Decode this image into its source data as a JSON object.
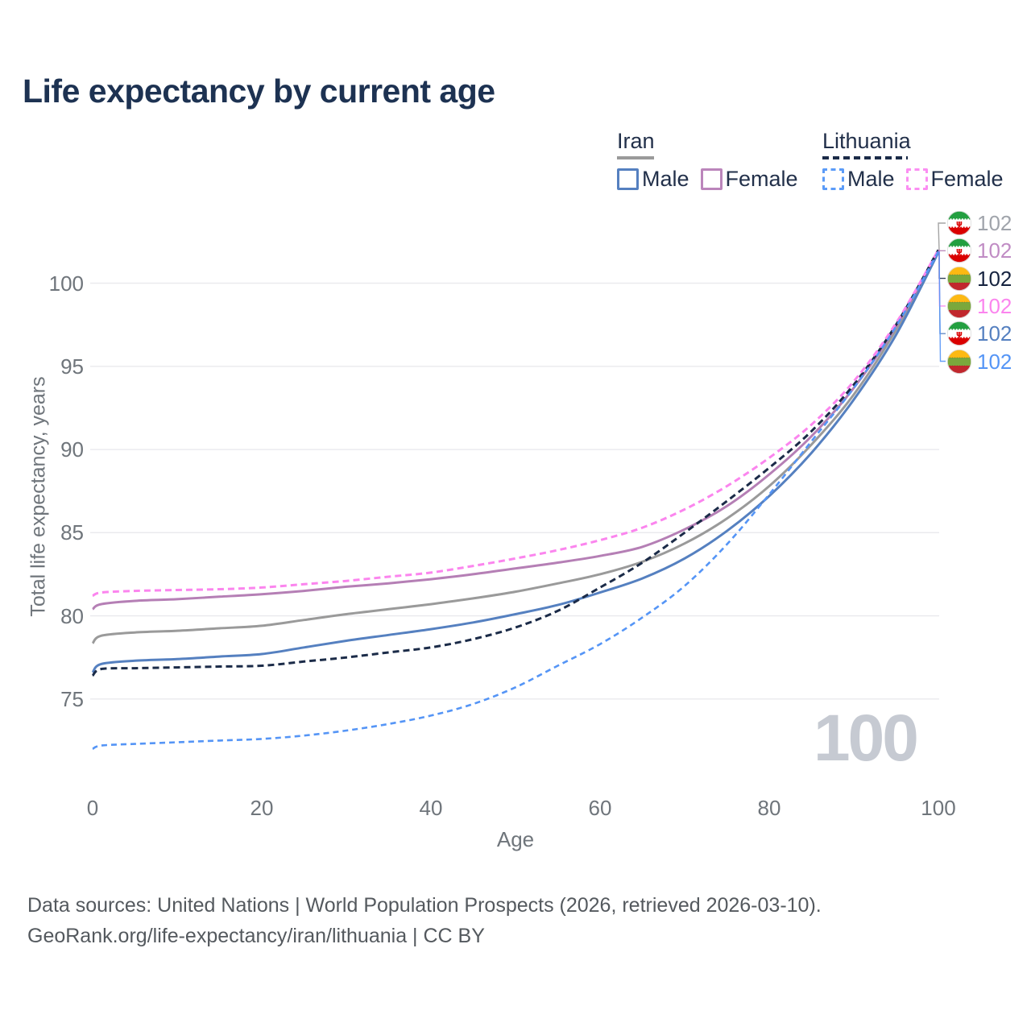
{
  "title": "Life expectancy by current age",
  "legend": {
    "iran": {
      "label": "Iran",
      "male": "Male",
      "female": "Female"
    },
    "lithuania": {
      "label": "Lithuania",
      "male": "Male",
      "female": "Female"
    }
  },
  "colors": {
    "iran_male": "#5580c0",
    "iran_female": "#b57fb5",
    "iran_total": "#9a9a9a",
    "lithuania_male": "#5595f6",
    "lithuania_female": "#fb85ee",
    "lithuania_total": "#1b2b48",
    "title_text": "#1d3252",
    "axis_text": "#6f757b",
    "gridline": "#e9e9ed",
    "watermark": "#c6cad2"
  },
  "watermark": "100",
  "footer": {
    "line1": "Data sources: United Nations | World Population Prospects (2026, retrieved 2026-03-10).",
    "line2": "GeoRank.org/life-expectancy/iran/lithuania | CC BY"
  },
  "chart_data": {
    "type": "line",
    "title": "Life expectancy by current age",
    "xlabel": "Age",
    "ylabel": "Total life expectancy, years",
    "xticks": [
      0,
      20,
      40,
      60,
      80,
      100
    ],
    "yticks": [
      75,
      80,
      85,
      90,
      95,
      100
    ],
    "xlim": [
      0,
      100
    ],
    "ylim": [
      71,
      103
    ],
    "grid": "horizontal",
    "legend_position": "top-right",
    "ages": [
      0,
      1,
      5,
      10,
      15,
      20,
      25,
      30,
      35,
      40,
      45,
      50,
      55,
      60,
      65,
      70,
      75,
      80,
      85,
      90,
      95,
      100
    ],
    "series": [
      {
        "key": "iran_total",
        "name": "Iran (both sexes)",
        "country": "Iran",
        "flag": "iran",
        "color": "#9a9a9a",
        "dash": "",
        "width": 3,
        "row": 0,
        "end_label": "102",
        "label_color": "#a0a4ab",
        "values": [
          78.35,
          78.8,
          79.0,
          79.1,
          79.25,
          79.4,
          79.75,
          80.1,
          80.4,
          80.7,
          81.05,
          81.45,
          81.95,
          82.5,
          83.25,
          84.35,
          85.85,
          87.8,
          90.3,
          93.3,
          97.2,
          101.95
        ]
      },
      {
        "key": "iran_female",
        "name": "Iran Female",
        "country": "Iran",
        "flag": "iran",
        "color": "#b57fb5",
        "dash": "",
        "width": 3,
        "row": 1,
        "end_label": "102",
        "label_color": "#c08cc4",
        "values": [
          80.4,
          80.7,
          80.9,
          81.0,
          81.15,
          81.3,
          81.5,
          81.75,
          81.95,
          82.2,
          82.5,
          82.85,
          83.2,
          83.6,
          84.15,
          85.2,
          86.6,
          88.5,
          90.8,
          93.7,
          97.4,
          102.0
        ]
      },
      {
        "key": "iran_male",
        "name": "Iran Male",
        "country": "Iran",
        "flag": "iran",
        "color": "#5580c0",
        "dash": "",
        "width": 3,
        "row": 4,
        "end_label": "102",
        "label_color": "#5580c0",
        "values": [
          76.6,
          77.1,
          77.3,
          77.4,
          77.55,
          77.7,
          78.1,
          78.5,
          78.85,
          79.2,
          79.6,
          80.1,
          80.65,
          81.4,
          82.25,
          83.45,
          85.1,
          87.2,
          89.8,
          93.0,
          96.9,
          101.85
        ]
      },
      {
        "key": "lithuania_total",
        "name": "Lithuania (both sexes)",
        "country": "Lithuania",
        "flag": "lithuania",
        "color": "#1b2b48",
        "dash": "8 5",
        "width": 3,
        "row": 2,
        "end_label": "102",
        "label_color": "#16233f",
        "values": [
          76.4,
          76.8,
          76.85,
          76.9,
          76.95,
          77.0,
          77.25,
          77.5,
          77.8,
          78.1,
          78.6,
          79.3,
          80.3,
          81.7,
          83.2,
          85.0,
          86.9,
          88.9,
          91.1,
          93.9,
          97.5,
          102.0
        ]
      },
      {
        "key": "lithuania_female",
        "name": "Lithuania Female",
        "country": "Lithuania",
        "flag": "lithuania",
        "color": "#fb85ee",
        "dash": "8 5",
        "width": 3,
        "row": 3,
        "end_label": "102",
        "label_color": "#fb85ee",
        "values": [
          81.2,
          81.4,
          81.5,
          81.55,
          81.6,
          81.7,
          81.9,
          82.1,
          82.35,
          82.6,
          83.0,
          83.45,
          83.95,
          84.55,
          85.3,
          86.4,
          87.8,
          89.5,
          91.5,
          94.1,
          97.6,
          102.0
        ]
      },
      {
        "key": "lithuania_male",
        "name": "Lithuania Male",
        "country": "Lithuania",
        "flag": "lithuania",
        "color": "#5595f6",
        "dash": "7 5",
        "width": 2.6,
        "row": 5,
        "end_label": "102",
        "label_color": "#5595f6",
        "values": [
          72.0,
          72.2,
          72.3,
          72.4,
          72.5,
          72.6,
          72.8,
          73.1,
          73.5,
          74.0,
          74.7,
          75.7,
          77.0,
          78.3,
          79.9,
          81.8,
          84.3,
          87.3,
          90.5,
          93.7,
          97.4,
          101.9
        ]
      }
    ]
  }
}
